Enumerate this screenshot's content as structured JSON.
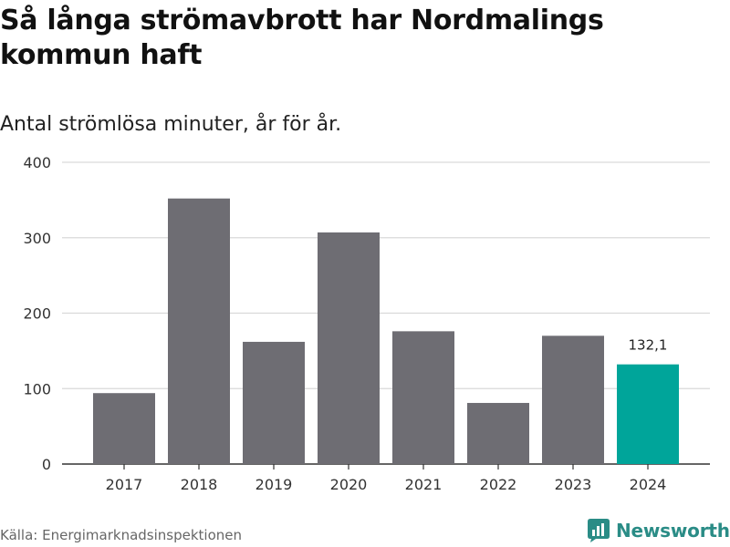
{
  "title": "Så långa strömavbrott har Nordmalings kommun haft",
  "subtitle": "Antal strömlösa minuter, år för år.",
  "source": "Källa: Energimarknadsinspektionen",
  "brand": "Newsworthy",
  "colors": {
    "bar": "#6e6d73",
    "highlight": "#00a59a",
    "grid": "#d9d9d9",
    "axis": "#333333",
    "brand": "#2a8c86"
  },
  "chart_data": {
    "type": "bar",
    "title": "Så långa strömavbrott har Nordmalings kommun haft",
    "subtitle": "Antal strömlösa minuter, år för år.",
    "xlabel": "",
    "ylabel": "",
    "ylim": [
      0,
      400
    ],
    "yticks": [
      0,
      100,
      200,
      300,
      400
    ],
    "grid": true,
    "categories": [
      "2017",
      "2018",
      "2019",
      "2020",
      "2021",
      "2022",
      "2023",
      "2024"
    ],
    "values": [
      94,
      352,
      162,
      307,
      176,
      81,
      170,
      132.1
    ],
    "highlight_index": 7,
    "annotations": [
      {
        "category": "2024",
        "label": "132,1"
      }
    ]
  }
}
